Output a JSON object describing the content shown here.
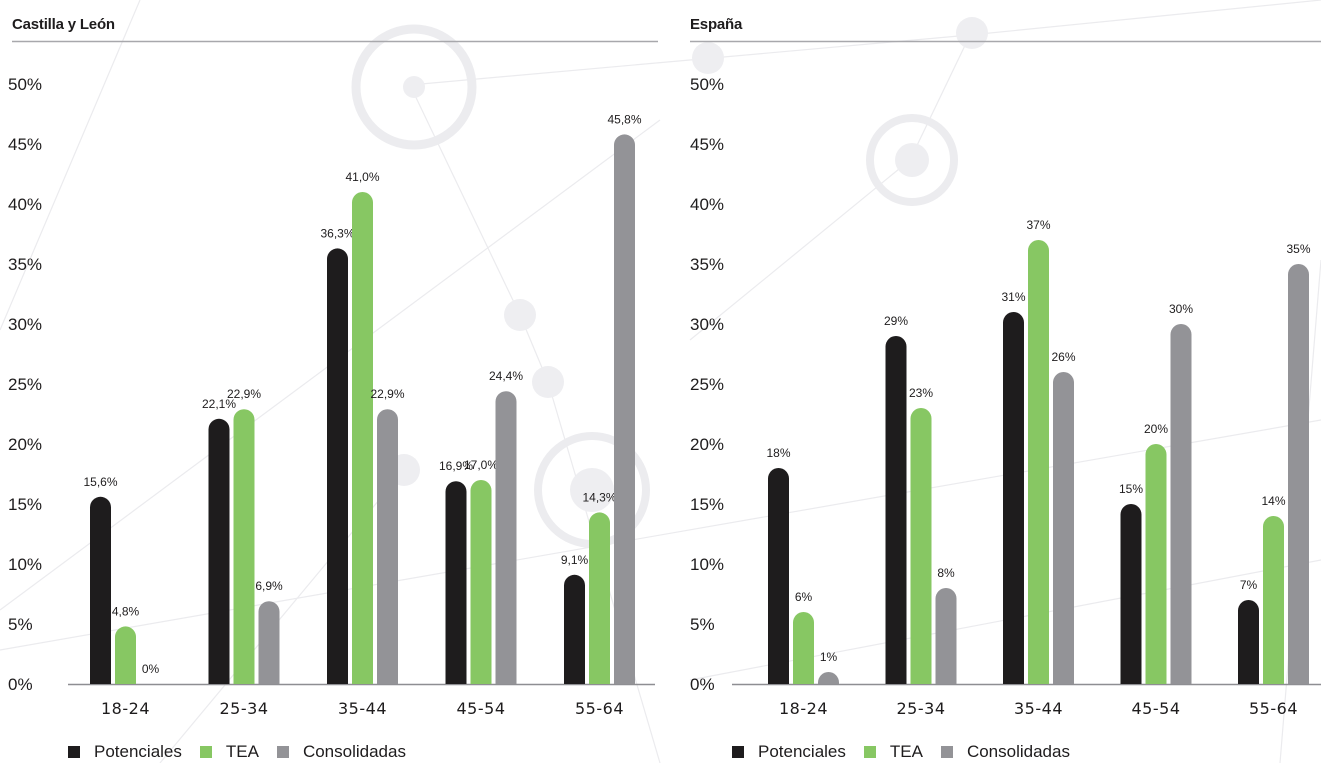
{
  "colors": {
    "potenciales": "#1e1c1d",
    "tea": "#87c763",
    "consolidadas": "#939397",
    "axis": "#8e8e92",
    "title_rule": "#a8a8ac"
  },
  "legend": {
    "items": [
      {
        "label": "Potenciales",
        "color": "#1e1c1d"
      },
      {
        "label": "TEA",
        "color": "#87c763"
      },
      {
        "label": "Consolidadas",
        "color": "#939397"
      }
    ],
    "placement": "bottom-left"
  },
  "chart_data": [
    {
      "type": "bar",
      "title": "Castilla y León",
      "xlabel": "",
      "ylabel": "",
      "ylim": [
        0,
        50
      ],
      "yticks": [
        "0%",
        "5%",
        "10%",
        "15%",
        "20%",
        "25%",
        "30%",
        "35%",
        "40%",
        "45%",
        "50%"
      ],
      "categories": [
        "18-24",
        "25-34",
        "35-44",
        "45-54",
        "55-64"
      ],
      "series": [
        {
          "name": "Potenciales",
          "values": [
            15.6,
            22.1,
            36.3,
            16.9,
            9.1
          ],
          "labels": [
            "15,6%",
            "22,1%",
            "36,3%",
            "16,9%",
            "9,1%"
          ]
        },
        {
          "name": "TEA",
          "values": [
            4.8,
            22.9,
            41.0,
            17.0,
            14.3
          ],
          "labels": [
            "4,8%",
            "22,9%",
            "41,0%",
            "17,0%",
            "14,3%"
          ]
        },
        {
          "name": "Consolidadas",
          "values": [
            0,
            6.9,
            22.9,
            24.4,
            45.8
          ],
          "labels": [
            "0%",
            "6,9%",
            "22,9%",
            "24,4%",
            "45,8%"
          ]
        }
      ],
      "grid": false,
      "legend": "bottom-left"
    },
    {
      "type": "bar",
      "title": "España",
      "xlabel": "",
      "ylabel": "",
      "ylim": [
        0,
        50
      ],
      "yticks": [
        "0%",
        "5%",
        "10%",
        "15%",
        "20%",
        "25%",
        "30%",
        "35%",
        "40%",
        "45%",
        "50%"
      ],
      "categories": [
        "18-24",
        "25-34",
        "35-44",
        "45-54",
        "55-64"
      ],
      "series": [
        {
          "name": "Potenciales",
          "values": [
            18,
            29,
            31,
            15,
            7
          ],
          "labels": [
            "18%",
            "29%",
            "31%",
            "15%",
            "7%"
          ]
        },
        {
          "name": "TEA",
          "values": [
            6,
            23,
            37,
            20,
            14
          ],
          "labels": [
            "6%",
            "23%",
            "37%",
            "20%",
            "14%"
          ]
        },
        {
          "name": "Consolidadas",
          "values": [
            1,
            8,
            26,
            30,
            35
          ],
          "labels": [
            "1%",
            "8%",
            "26%",
            "30%",
            "35%"
          ]
        }
      ],
      "grid": false,
      "legend": "bottom-left"
    }
  ]
}
